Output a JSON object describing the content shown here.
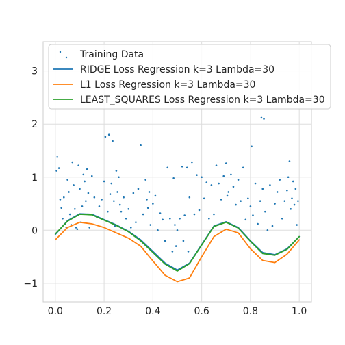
{
  "chart_data": {
    "type": "line",
    "xlim": [
      -0.05,
      1.05
    ],
    "ylim": [
      -1.35,
      3.55
    ],
    "x_ticks": [
      0.0,
      0.2,
      0.4,
      0.6,
      0.8,
      1.0
    ],
    "x_tick_labels": [
      "0.0",
      "0.2",
      "0.4",
      "0.6",
      "0.8",
      "1.0"
    ],
    "y_ticks": [
      -1,
      0,
      1,
      2,
      3
    ],
    "y_tick_labels": [
      "−1",
      "0",
      "1",
      "2",
      "3"
    ],
    "grid": true,
    "legend_position": "top-right",
    "series": [
      {
        "name": "Training Data",
        "kind": "scatter",
        "color": "#1f77b4",
        "points": [
          [
            0.005,
            1.12
          ],
          [
            0.008,
            1.38
          ],
          [
            0.015,
            1.17
          ],
          [
            0.02,
            0.58
          ],
          [
            0.025,
            0.42
          ],
          [
            0.03,
            0.22
          ],
          [
            0.035,
            0.62
          ],
          [
            0.04,
            0.12
          ],
          [
            0.045,
            0.05
          ],
          [
            0.05,
            0.95
          ],
          [
            0.055,
            0.72
          ],
          [
            0.06,
            0.3
          ],
          [
            0.065,
            0.1
          ],
          [
            0.07,
            1.28
          ],
          [
            0.075,
            0.85
          ],
          [
            0.08,
            0.4
          ],
          [
            0.085,
            0.05
          ],
          [
            0.09,
            0.02
          ],
          [
            0.095,
            1.22
          ],
          [
            0.1,
            0.78
          ],
          [
            0.105,
            0.15
          ],
          [
            0.11,
            0.45
          ],
          [
            0.115,
            1.05
          ],
          [
            0.12,
            0.92
          ],
          [
            0.125,
            0.55
          ],
          [
            0.13,
            1.15
          ],
          [
            0.135,
            0.7
          ],
          [
            0.14,
            0.05
          ],
          [
            0.15,
            1.02
          ],
          [
            0.16,
            0.62
          ],
          [
            0.17,
            0.25
          ],
          [
            0.18,
            0.45
          ],
          [
            0.19,
            0.58
          ],
          [
            0.2,
            0.92
          ],
          [
            0.205,
            1.76
          ],
          [
            0.215,
            0.35
          ],
          [
            0.22,
            1.8
          ],
          [
            0.225,
            0.68
          ],
          [
            0.23,
            0.88
          ],
          [
            0.235,
            1.68
          ],
          [
            0.24,
            0.55
          ],
          [
            0.245,
            0.08
          ],
          [
            0.25,
            1.12
          ],
          [
            0.255,
            0.72
          ],
          [
            0.26,
            1.0
          ],
          [
            0.265,
            0.48
          ],
          [
            0.27,
            0.35
          ],
          [
            0.28,
            0.62
          ],
          [
            0.29,
            0.22
          ],
          [
            0.3,
            0.4
          ],
          [
            0.31,
            0.05
          ],
          [
            0.32,
            0.7
          ],
          [
            0.33,
            0.15
          ],
          [
            0.34,
            0.78
          ],
          [
            0.35,
            1.6
          ],
          [
            0.36,
            0.3
          ],
          [
            0.37,
            0.95
          ],
          [
            0.375,
            0.58
          ],
          [
            0.38,
            0.42
          ],
          [
            0.385,
            0.72
          ],
          [
            0.39,
            0.1
          ],
          [
            0.4,
            0.5
          ],
          [
            0.41,
            0.65
          ],
          [
            0.42,
            0.0
          ],
          [
            0.43,
            0.32
          ],
          [
            0.44,
            0.2
          ],
          [
            0.45,
            -0.2
          ],
          [
            0.46,
            1.18
          ],
          [
            0.47,
            0.22
          ],
          [
            0.48,
            -0.4
          ],
          [
            0.485,
            0.98
          ],
          [
            0.49,
            0.1
          ],
          [
            0.495,
            -0.3
          ],
          [
            0.5,
            0.0
          ],
          [
            0.51,
            0.22
          ],
          [
            0.52,
            1.2
          ],
          [
            0.525,
            -0.2
          ],
          [
            0.53,
            0.28
          ],
          [
            0.54,
            1.18
          ],
          [
            0.545,
            -0.4
          ],
          [
            0.55,
            0.62
          ],
          [
            0.56,
            1.28
          ],
          [
            0.57,
            0.3
          ],
          [
            0.58,
            1.04
          ],
          [
            0.59,
            0.38
          ],
          [
            0.6,
            1.0
          ],
          [
            0.61,
            0.6
          ],
          [
            0.62,
            0.9
          ],
          [
            0.63,
            0.22
          ],
          [
            0.64,
            0.85
          ],
          [
            0.65,
            0.3
          ],
          [
            0.66,
            1.22
          ],
          [
            0.67,
            0.88
          ],
          [
            0.68,
            0.58
          ],
          [
            0.69,
            1.02
          ],
          [
            0.7,
            1.26
          ],
          [
            0.705,
            0.65
          ],
          [
            0.71,
            0.72
          ],
          [
            0.72,
            1.05
          ],
          [
            0.73,
            0.82
          ],
          [
            0.74,
            0.48
          ],
          [
            0.75,
            0.95
          ],
          [
            0.76,
            0.55
          ],
          [
            0.77,
            1.18
          ],
          [
            0.78,
            0.2
          ],
          [
            0.79,
            0.6
          ],
          [
            0.8,
            0.45
          ],
          [
            0.805,
            1.58
          ],
          [
            0.81,
            0.28
          ],
          [
            0.82,
            0.88
          ],
          [
            0.83,
            0.12
          ],
          [
            0.84,
            0.55
          ],
          [
            0.845,
            2.12
          ],
          [
            0.85,
            0.78
          ],
          [
            0.855,
            2.1
          ],
          [
            0.86,
            0.35
          ],
          [
            0.87,
            0.0
          ],
          [
            0.88,
            0.85
          ],
          [
            0.89,
            0.08
          ],
          [
            0.9,
            0.5
          ],
          [
            0.91,
            0.72
          ],
          [
            0.92,
            0.95
          ],
          [
            0.93,
            0.22
          ],
          [
            0.94,
            0.55
          ],
          [
            0.95,
            0.75
          ],
          [
            0.955,
            1.0
          ],
          [
            0.96,
            1.3
          ],
          [
            0.965,
            0.4
          ],
          [
            0.97,
            0.6
          ],
          [
            0.975,
            0.92
          ],
          [
            0.98,
            0.48
          ],
          [
            0.985,
            0.78
          ],
          [
            0.99,
            0.1
          ],
          [
            0.995,
            0.55
          ]
        ]
      },
      {
        "name": "RIDGE Loss Regression k=3 Lambda=30",
        "kind": "line",
        "color": "#1f77b4",
        "x": [
          0.0,
          0.05,
          0.1,
          0.15,
          0.2,
          0.25,
          0.3,
          0.35,
          0.4,
          0.45,
          0.5,
          0.55,
          0.6,
          0.65,
          0.7,
          0.75,
          0.8,
          0.85,
          0.9,
          0.95,
          1.0
        ],
        "y": [
          -0.08,
          0.18,
          0.31,
          0.3,
          0.2,
          0.1,
          -0.02,
          -0.18,
          -0.4,
          -0.62,
          -0.75,
          -0.62,
          -0.27,
          0.08,
          0.16,
          0.05,
          -0.2,
          -0.42,
          -0.46,
          -0.35,
          -0.12
        ]
      },
      {
        "name": "L1 Loss Regression k=3 Lambda=30",
        "kind": "line",
        "color": "#ff7f0e",
        "x": [
          0.0,
          0.05,
          0.1,
          0.15,
          0.2,
          0.25,
          0.3,
          0.35,
          0.4,
          0.45,
          0.5,
          0.55,
          0.6,
          0.65,
          0.7,
          0.75,
          0.8,
          0.85,
          0.9,
          0.95,
          1.0
        ],
        "y": [
          -0.18,
          0.05,
          0.15,
          0.12,
          0.05,
          -0.05,
          -0.15,
          -0.3,
          -0.58,
          -0.85,
          -0.97,
          -0.9,
          -0.5,
          -0.12,
          0.02,
          -0.05,
          -0.35,
          -0.57,
          -0.61,
          -0.45,
          -0.18
        ]
      },
      {
        "name": "LEAST_SQUARES Loss Regression k=3 Lambda=30",
        "kind": "line",
        "color": "#2ca02c",
        "x": [
          0.0,
          0.05,
          0.1,
          0.15,
          0.2,
          0.25,
          0.3,
          0.35,
          0.4,
          0.45,
          0.5,
          0.55,
          0.6,
          0.65,
          0.7,
          0.75,
          0.8,
          0.85,
          0.9,
          0.95,
          1.0
        ],
        "y": [
          -0.07,
          0.17,
          0.3,
          0.29,
          0.19,
          0.09,
          -0.03,
          -0.2,
          -0.42,
          -0.64,
          -0.77,
          -0.63,
          -0.28,
          0.07,
          0.15,
          0.04,
          -0.21,
          -0.44,
          -0.47,
          -0.36,
          -0.12
        ]
      }
    ]
  }
}
